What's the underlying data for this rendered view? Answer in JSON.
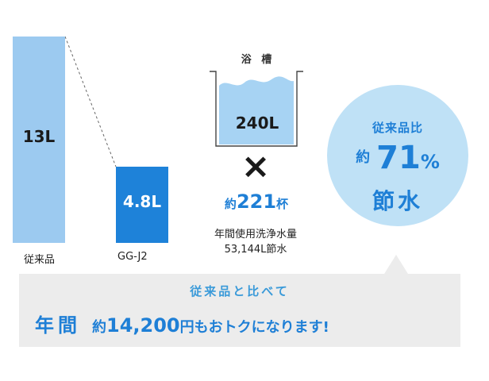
{
  "chart_data": {
    "type": "bar",
    "categories": [
      "従来品",
      "GG-J2"
    ],
    "values": [
      13,
      4.8
    ],
    "value_labels": [
      "13L",
      "4.8L"
    ],
    "colors": [
      "#9ccaf0",
      "#1e82d9"
    ],
    "ylim": [
      0,
      14.3
    ],
    "grid": false,
    "legend": "none"
  },
  "bath": {
    "title": "浴 槽",
    "value": "240L"
  },
  "times_symbol": "×",
  "cups": {
    "prefix": "約",
    "number": "221",
    "suffix": "杯"
  },
  "annual": {
    "line1": "年間使用洗浄水量",
    "line2": "53,144L節水"
  },
  "circle": {
    "label": "従来品比",
    "prefix": "約",
    "percent": "71",
    "percent_sign": "%",
    "sub": "節水"
  },
  "banner": {
    "sub": "従来品と比べて",
    "lead": "年間",
    "prefix": "約",
    "amount": "14,200",
    "rest": "円もおトクになります!"
  },
  "colors": {
    "accent": "#1e7fd6",
    "light_blue": "#9ccaf0",
    "circle_bg": "#bfe1f6",
    "banner_bg": "#ececec"
  }
}
